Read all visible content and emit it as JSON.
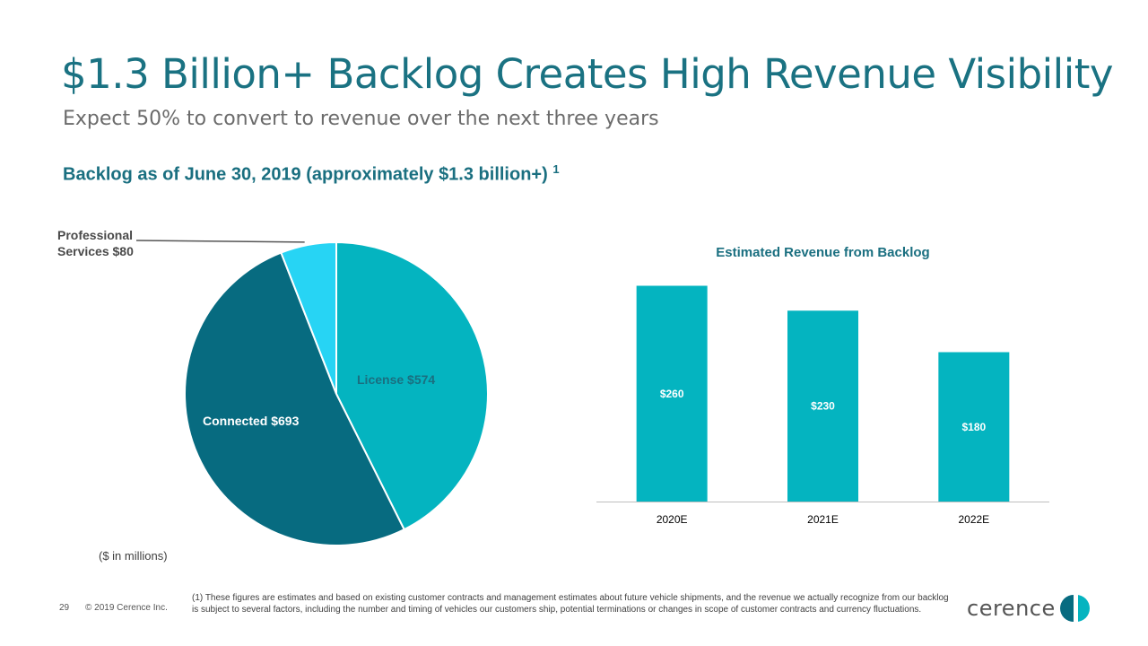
{
  "slide": {
    "title": "$1.3 Billion+ Backlog Creates High Revenue Visibility",
    "subtitle": "Expect 50% to convert to revenue over the next three years",
    "section_heading": "Backlog as of June 30, 2019 (approximately $1.3 billion+)",
    "section_heading_superscript": "1",
    "units_note": "($ in millions)",
    "page_number": "29",
    "copyright": "© 2019 Cerence Inc.",
    "footnote": "(1) These figures are estimates and based on existing customer contracts and management estimates about future vehicle shipments, and the revenue we actually recognize from our backlog is subject to several factors, including the number and timing of vehicles our customers ship, potential terminations or changes in scope of customer contracts and currency fluctuations.",
    "logo_text": "cerence"
  },
  "chart_data": [
    {
      "type": "pie",
      "title": "",
      "slices": [
        {
          "label": "License",
          "value": 574,
          "display": "License  $574",
          "color": "#04b4c0",
          "text_color": "#1a6f80"
        },
        {
          "label": "Connected",
          "value": 693,
          "display": "Connected  $693",
          "color": "#076b80",
          "text_color": "#ffffff"
        },
        {
          "label": "Professional Services",
          "value": 80,
          "display": "Professional Services  $80",
          "display_lines": [
            "Professional",
            "Services  $80"
          ],
          "color": "#27d4f4",
          "text_color": "#4a4a4a"
        }
      ],
      "units": "($ in millions)"
    },
    {
      "type": "bar",
      "title": "Estimated Revenue from Backlog",
      "categories": [
        "2020E",
        "2021E",
        "2022E"
      ],
      "values": [
        260,
        230,
        180
      ],
      "value_labels": [
        "$260",
        "$230",
        "$180"
      ],
      "ylim": [
        0,
        280
      ],
      "color": "#04b4c0",
      "grid": false,
      "xlabel": "",
      "ylabel": ""
    }
  ]
}
